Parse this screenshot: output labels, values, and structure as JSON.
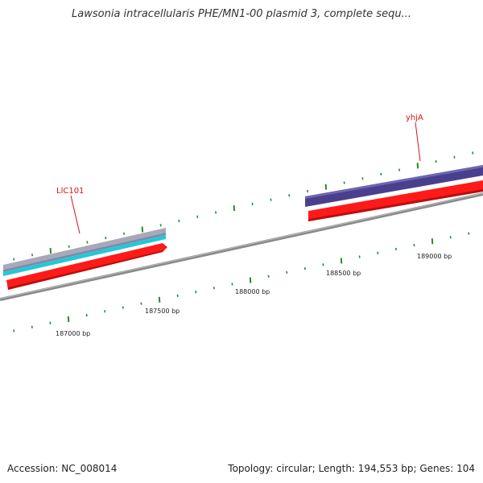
{
  "title": "Lawsonia intracellularis PHE/MN1-00 plasmid 3, complete sequ...",
  "footer": {
    "accession": "Accession: NC_008014",
    "info": "Topology: circular; Length: 194,553 bp; Genes: 104"
  },
  "ticks": [
    "187000 bp",
    "187500 bp",
    "188000 bp",
    "188500 bp",
    "189000 bp"
  ],
  "genes": [
    {
      "label": "LlC101"
    },
    {
      "label": "yhjA"
    }
  ],
  "colors": {
    "backbone": "#8a8a8a",
    "cds": "#ff1a1a",
    "tick": "#2a8a2a",
    "gene_label": "#e01010",
    "band_cyan": "#22c8d8",
    "band_grey": "#a8a8b8",
    "band_purple": "#4a3f8f"
  }
}
